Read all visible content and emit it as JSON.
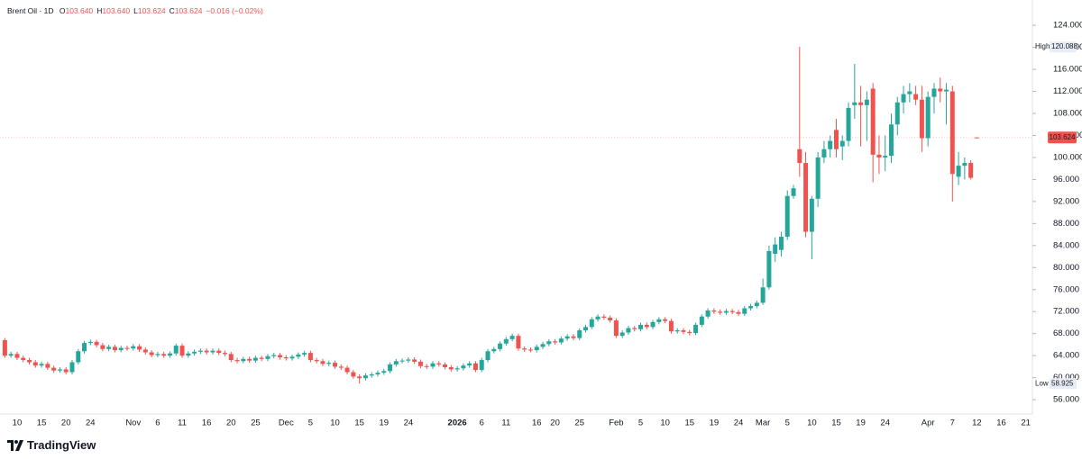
{
  "header": {
    "symbol": "Brent Oil · 1D",
    "items": [
      {
        "key": "O",
        "value": "103.640"
      },
      {
        "key": "H",
        "value": "103.640"
      },
      {
        "key": "L",
        "value": "103.624"
      },
      {
        "key": "C",
        "value": "103.624"
      }
    ],
    "change": "−0.016 (−0.02%)"
  },
  "branding": "TradingView",
  "chart_data": {
    "type": "candlestick",
    "up_color": "#26a69a",
    "down_color": "#ef5350",
    "grid": false,
    "high_label": "High",
    "low_label": "Low",
    "ylim": [
      53.4,
      128.6
    ],
    "yticks": [
      {
        "value": 56,
        "label": "56.000"
      },
      {
        "value": 60,
        "label": "60.000"
      },
      {
        "value": 64,
        "label": "64.000"
      },
      {
        "value": 68,
        "label": "68.000"
      },
      {
        "value": 72,
        "label": "72.000"
      },
      {
        "value": 76,
        "label": "76.000"
      },
      {
        "value": 80,
        "label": "80.000"
      },
      {
        "value": 84,
        "label": "84.000"
      },
      {
        "value": 88,
        "label": "88.000"
      },
      {
        "value": 92,
        "label": "92.000"
      },
      {
        "value": 96,
        "label": "96.000"
      },
      {
        "value": 100,
        "label": "100.000"
      },
      {
        "value": 104,
        "label": "104.000"
      },
      {
        "value": 108,
        "label": "108.000"
      },
      {
        "value": 112,
        "label": "112.000"
      },
      {
        "value": 116,
        "label": "116.000"
      },
      {
        "value": 120,
        "label": "120.000"
      },
      {
        "value": 124,
        "label": "124.000"
      }
    ],
    "categories": [
      null,
      null,
      "10",
      null,
      null,
      null,
      "15",
      null,
      null,
      null,
      "20",
      null,
      null,
      null,
      "24",
      null,
      null,
      null,
      null,
      null,
      null,
      "Nov",
      null,
      null,
      null,
      "6",
      null,
      null,
      null,
      "11",
      null,
      null,
      null,
      "16",
      null,
      null,
      null,
      "20",
      null,
      null,
      null,
      "25",
      null,
      null,
      null,
      null,
      "Dec",
      null,
      null,
      null,
      "5",
      null,
      null,
      null,
      "10",
      null,
      null,
      null,
      "15",
      null,
      null,
      null,
      "19",
      null,
      null,
      null,
      "24",
      null,
      null,
      null,
      null,
      null,
      null,
      null,
      "2026",
      null,
      null,
      null,
      "6",
      null,
      null,
      null,
      "11",
      null,
      null,
      null,
      null,
      "16",
      null,
      null,
      "20",
      null,
      null,
      null,
      "25",
      null,
      null,
      null,
      null,
      null,
      "Feb",
      null,
      null,
      null,
      "5",
      null,
      null,
      null,
      "10",
      null,
      null,
      null,
      "15",
      null,
      null,
      null,
      "19",
      null,
      null,
      null,
      "24",
      null,
      null,
      null,
      "Mar",
      null,
      null,
      null,
      "5",
      null,
      null,
      null,
      "10",
      null,
      null,
      null,
      "15",
      null,
      null,
      null,
      "19",
      null,
      null,
      null,
      "24",
      null,
      null,
      null,
      null,
      null,
      null,
      "Apr",
      null,
      null,
      null,
      "7",
      null,
      null,
      null,
      "12",
      null,
      null,
      null,
      "16",
      null,
      null,
      null,
      "21"
    ],
    "open": [
      66.8,
      64.0,
      64.3,
      63.6,
      63.2,
      62.8,
      62.2,
      62.5,
      61.8,
      61.3,
      61.5,
      61.0,
      62.8,
      64.8,
      66.3,
      66.5,
      65.9,
      65.2,
      65.6,
      65.0,
      65.4,
      65.3,
      65.7,
      65.1,
      64.6,
      64.1,
      64.3,
      64.0,
      64.4,
      65.8,
      64.0,
      64.4,
      64.7,
      64.9,
      64.6,
      64.9,
      64.5,
      64.3,
      63.2,
      63.0,
      63.4,
      63.1,
      63.6,
      63.4,
      63.9,
      64.1,
      63.7,
      63.5,
      63.8,
      64.2,
      64.5,
      63.2,
      63.0,
      62.5,
      62.7,
      62.0,
      61.8,
      61.0,
      60.2,
      59.9,
      60.4,
      60.6,
      60.9,
      61.2,
      62.4,
      63.0,
      63.1,
      63.3,
      62.9,
      62.1,
      62.0,
      62.6,
      62.4,
      61.9,
      61.5,
      61.7,
      62.2,
      62.6,
      61.4,
      63.2,
      64.8,
      65.2,
      66.2,
      67.0,
      67.6,
      65.3,
      65.1,
      65.0,
      65.6,
      66.1,
      66.6,
      66.4,
      67.1,
      67.5,
      67.2,
      68.6,
      69.2,
      70.6,
      71.1,
      70.9,
      70.4,
      67.6,
      68.2,
      69.0,
      68.8,
      69.6,
      69.2,
      70.1,
      70.6,
      70.3,
      68.4,
      68.6,
      68.3,
      68.1,
      69.6,
      71.1,
      72.2,
      72.0,
      71.8,
      72.1,
      71.9,
      71.6,
      72.6,
      73.0,
      73.6,
      76.4,
      82.5,
      83.2,
      85.6,
      93,
      101.5,
      99,
      86.5,
      92.5,
      100,
      101.5,
      105,
      102,
      103,
      109.5,
      110,
      109.5,
      112.5,
      100.5,
      100,
      100.3,
      106,
      110,
      111.5,
      111.5,
      110.5,
      103.5,
      111,
      112.5,
      112,
      112,
      96.5,
      98.5,
      99,
      103.64,
      null,
      null,
      null,
      null,
      null,
      null,
      null,
      null
    ],
    "high": [
      67.2,
      64.7,
      64.7,
      64.0,
      63.6,
      63.2,
      62.9,
      62.9,
      62.2,
      61.9,
      61.9,
      63.2,
      65.2,
      66.7,
      66.9,
      66.9,
      66.3,
      66.0,
      66.0,
      65.8,
      65.8,
      66.1,
      66.1,
      65.5,
      65.0,
      64.7,
      64.7,
      64.8,
      66.2,
      66.2,
      64.8,
      65.1,
      65.3,
      65.3,
      65.3,
      65.3,
      64.9,
      64.7,
      63.6,
      63.8,
      63.8,
      64.0,
      64.0,
      64.3,
      64.5,
      64.5,
      64.1,
      64.2,
      64.6,
      64.9,
      64.9,
      63.6,
      63.4,
      63.1,
      63.1,
      62.4,
      62.2,
      61.4,
      60.6,
      60.8,
      61.0,
      61.3,
      61.6,
      62.8,
      63.4,
      63.5,
      63.7,
      63.7,
      63.3,
      62.5,
      63.0,
      63.0,
      62.8,
      62.3,
      62.1,
      62.6,
      63.0,
      63.0,
      63.6,
      65.2,
      65.6,
      66.6,
      67.4,
      68.0,
      68.0,
      65.7,
      65.5,
      66.0,
      66.5,
      67.0,
      67.0,
      67.5,
      67.9,
      67.9,
      69.0,
      69.6,
      71.0,
      71.5,
      71.5,
      71.3,
      70.8,
      68.6,
      69.4,
      69.4,
      70.0,
      70.0,
      70.5,
      71.0,
      71.0,
      70.7,
      69.0,
      69.0,
      68.7,
      70.0,
      71.5,
      72.6,
      72.6,
      72.4,
      72.5,
      72.5,
      72.3,
      73.0,
      73.4,
      74.0,
      78,
      84,
      85.5,
      86.5,
      94,
      95,
      120.088,
      101,
      93,
      101,
      103,
      104,
      107,
      104,
      110,
      117,
      113,
      112,
      113.5,
      104,
      104,
      108,
      111,
      113,
      113.5,
      113,
      113,
      112,
      113.5,
      114.5,
      113.5,
      113,
      101,
      100,
      99.5,
      103.64,
      null,
      null,
      null,
      null,
      null,
      null,
      null,
      null
    ],
    "low": [
      63.6,
      63.6,
      63.2,
      62.8,
      62.4,
      61.8,
      61.8,
      61.4,
      60.9,
      60.9,
      60.6,
      60.6,
      62.4,
      64.4,
      65.9,
      65.5,
      64.8,
      64.8,
      64.6,
      64.6,
      64.9,
      64.9,
      64.7,
      64.2,
      63.7,
      63.7,
      63.6,
      63.6,
      64.0,
      63.6,
      63.6,
      64.0,
      64.3,
      64.2,
      64.2,
      64.1,
      63.9,
      62.8,
      62.6,
      62.6,
      62.7,
      62.7,
      63.0,
      63.0,
      63.5,
      63.3,
      63.1,
      63.1,
      63.4,
      63.8,
      62.8,
      62.6,
      62.1,
      62.1,
      61.6,
      61.4,
      60.6,
      59.8,
      58.925,
      59.5,
      60.0,
      60.2,
      60.5,
      60.8,
      62.0,
      62.6,
      62.7,
      62.5,
      61.7,
      61.6,
      61.6,
      62.0,
      61.5,
      61.1,
      61.1,
      61.3,
      61.8,
      61.0,
      61.0,
      62.8,
      64.4,
      64.8,
      65.8,
      66.6,
      64.9,
      64.7,
      64.6,
      64.6,
      65.2,
      65.7,
      66.0,
      66.0,
      66.7,
      66.8,
      66.8,
      68.2,
      68.8,
      70.2,
      70.5,
      70.0,
      67.2,
      67.2,
      67.8,
      68.4,
      68.4,
      68.8,
      68.8,
      69.7,
      69.9,
      68.0,
      68.0,
      67.9,
      67.7,
      67.7,
      69.2,
      70.7,
      71.6,
      71.4,
      71.4,
      71.5,
      71.2,
      71.2,
      72.2,
      72.6,
      73.2,
      76,
      81,
      82,
      85,
      92.5,
      96.5,
      85.5,
      81.5,
      91,
      99,
      100,
      100,
      99.5,
      102,
      107,
      102,
      103,
      95.5,
      97,
      97.5,
      99,
      104,
      108,
      110,
      109.5,
      101,
      102,
      108,
      110,
      106,
      92,
      95,
      96,
      96,
      103.624,
      null,
      null,
      null,
      null,
      null,
      null,
      null,
      null
    ],
    "close": [
      64.0,
      64.3,
      63.6,
      63.2,
      62.8,
      62.2,
      62.5,
      61.8,
      61.3,
      61.5,
      61.0,
      62.8,
      64.8,
      66.3,
      66.5,
      65.9,
      65.2,
      65.6,
      65.0,
      65.4,
      65.3,
      65.7,
      65.1,
      64.6,
      64.1,
      64.3,
      64.0,
      64.4,
      65.8,
      64.0,
      64.4,
      64.7,
      64.9,
      64.6,
      64.9,
      64.5,
      64.3,
      63.2,
      63.0,
      63.4,
      63.1,
      63.6,
      63.4,
      63.9,
      64.1,
      63.7,
      63.5,
      63.8,
      64.2,
      64.5,
      63.2,
      63.0,
      62.5,
      62.7,
      62.0,
      61.8,
      61.0,
      60.2,
      59.9,
      60.4,
      60.6,
      60.9,
      61.2,
      62.4,
      63.0,
      63.1,
      63.3,
      62.9,
      62.1,
      62.0,
      62.6,
      62.4,
      61.9,
      61.5,
      61.7,
      62.2,
      62.6,
      61.4,
      63.2,
      64.8,
      65.2,
      66.2,
      67.0,
      67.6,
      65.3,
      65.1,
      65.0,
      65.6,
      66.1,
      66.6,
      66.4,
      67.1,
      67.5,
      67.2,
      68.6,
      69.2,
      70.6,
      71.1,
      70.9,
      70.4,
      67.6,
      68.2,
      69.0,
      68.8,
      69.6,
      69.2,
      70.1,
      70.6,
      70.3,
      68.4,
      68.6,
      68.3,
      68.1,
      69.6,
      71.1,
      72.2,
      72.0,
      71.8,
      72.1,
      71.9,
      71.6,
      72.6,
      73.0,
      73.6,
      76.4,
      83,
      84.2,
      85.6,
      93,
      94.4,
      99,
      86.5,
      92.5,
      100,
      101.5,
      103,
      101.5,
      103,
      109,
      110,
      109.5,
      110.5,
      100.5,
      100,
      100.3,
      106,
      110,
      111.5,
      112,
      110.5,
      103.5,
      111,
      112.5,
      112,
      112.3,
      97,
      98.5,
      99,
      96.3,
      103.624,
      null,
      null,
      null,
      null,
      null,
      null,
      null,
      null
    ]
  }
}
